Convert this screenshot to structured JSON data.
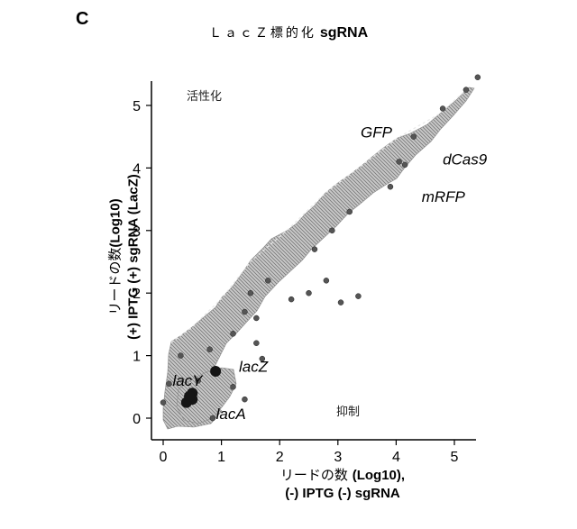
{
  "panel_label": "C",
  "chart_data": {
    "type": "scatter",
    "title_prefix": "ＬａｃＺ標的化",
    "title_suffix": "sgRNA",
    "xlabel_line1_jp": "リードの数",
    "xlabel_line1_en": "(Log10),",
    "xlabel_line2": "(-) IPTG (-) sgRNA",
    "ylabel_line1_jp": "リードの数",
    "ylabel_line1_en": "(Log10)",
    "ylabel_line2": "(+) IPTG (+) sgRNA (LacZ)",
    "xlim": [
      -0.2,
      5.3
    ],
    "ylim": [
      -0.2,
      5.3
    ],
    "x_ticks": [
      0,
      1,
      2,
      3,
      4,
      5
    ],
    "y_ticks": [
      0,
      1,
      2,
      3,
      4,
      5
    ],
    "region_labels": {
      "top_left": "活性化",
      "bottom_right": "抑制"
    },
    "annotations": [
      {
        "label": "GFP",
        "x": 3.9,
        "y": 4.4
      },
      {
        "label": "dCas9",
        "x": 4.8,
        "y": 4.2
      },
      {
        "label": "mRFP",
        "x": 4.5,
        "y": 3.6
      },
      {
        "label": "lacY",
        "x": 0.55,
        "y": 0.55
      },
      {
        "label": "lacZ",
        "x": 1.3,
        "y": 0.8
      },
      {
        "label": "lacA",
        "x": 1.0,
        "y": 0.1
      }
    ],
    "highlight_points": [
      {
        "x": 0.9,
        "y": 0.75
      },
      {
        "x": 0.5,
        "y": 0.4
      },
      {
        "x": 0.5,
        "y": 0.3
      },
      {
        "x": 0.4,
        "y": 0.25
      },
      {
        "x": 0.45,
        "y": 0.35
      }
    ],
    "outlier_points": [
      {
        "x": 5.4,
        "y": 5.45
      },
      {
        "x": 5.2,
        "y": 5.25
      },
      {
        "x": 4.8,
        "y": 4.95
      },
      {
        "x": 4.3,
        "y": 4.5
      },
      {
        "x": 4.15,
        "y": 4.05
      },
      {
        "x": 4.05,
        "y": 4.1
      },
      {
        "x": 3.2,
        "y": 3.3
      },
      {
        "x": 2.9,
        "y": 3.0
      },
      {
        "x": 2.6,
        "y": 2.7
      },
      {
        "x": 3.35,
        "y": 1.95
      },
      {
        "x": 3.05,
        "y": 1.85
      },
      {
        "x": 2.5,
        "y": 2.0
      },
      {
        "x": 2.2,
        "y": 1.9
      },
      {
        "x": 1.6,
        "y": 1.6
      },
      {
        "x": 1.4,
        "y": 1.7
      },
      {
        "x": 1.5,
        "y": 2.0
      },
      {
        "x": 1.8,
        "y": 2.2
      },
      {
        "x": 1.2,
        "y": 1.35
      },
      {
        "x": 0.8,
        "y": 1.1
      },
      {
        "x": 0.6,
        "y": 0.6
      },
      {
        "x": 1.2,
        "y": 0.5
      },
      {
        "x": 1.7,
        "y": 0.95
      },
      {
        "x": 1.4,
        "y": 0.3
      },
      {
        "x": 0.85,
        "y": 0.0
      },
      {
        "x": 0.3,
        "y": 1.0
      },
      {
        "x": 0.1,
        "y": 0.55
      },
      {
        "x": 0.0,
        "y": 0.25
      },
      {
        "x": 1.6,
        "y": 1.2
      },
      {
        "x": 2.8,
        "y": 2.2
      },
      {
        "x": 3.9,
        "y": 3.7
      }
    ]
  }
}
